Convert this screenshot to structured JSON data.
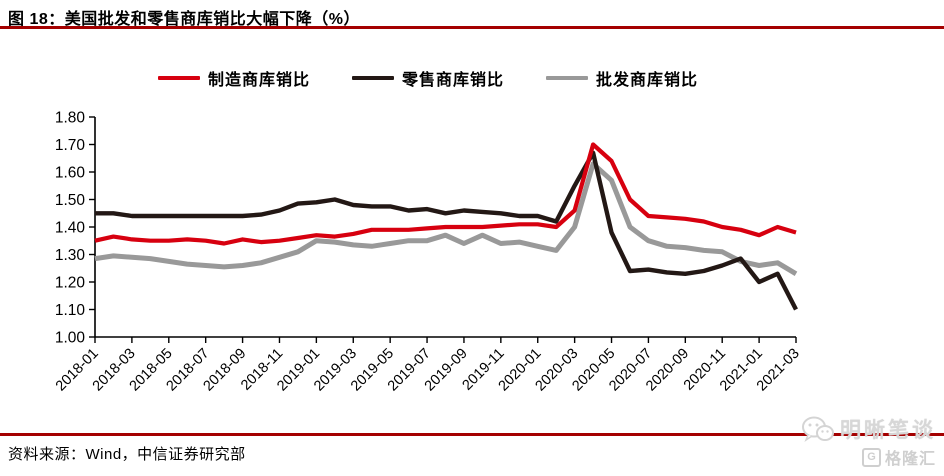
{
  "page": {
    "title": "图 18：美国批发和零售商库销比大幅下降（%）",
    "source": "资料来源：Wind，中信证券研究部",
    "watermark": {
      "brand": "明晰笔谈",
      "logo": "格隆汇",
      "logo_letter": "G"
    },
    "colors": {
      "accent_rule_red": "#A40000",
      "series_manufacturer_red": "#D7000F",
      "series_retailer_black": "#231815",
      "series_wholesaler_gray": "#999999",
      "watermark_gray": "#D7D7D7"
    }
  },
  "chart_data": {
    "type": "line",
    "title": "美国批发和零售商库销比大幅下降（%）",
    "xlabel": "",
    "ylabel": "",
    "ylim": [
      1.0,
      1.8
    ],
    "y_ticks": [
      1.0,
      1.1,
      1.2,
      1.3,
      1.4,
      1.5,
      1.6,
      1.7,
      1.8
    ],
    "grid": false,
    "legend_position": "top",
    "x": [
      "2018-01",
      "2018-02",
      "2018-03",
      "2018-04",
      "2018-05",
      "2018-06",
      "2018-07",
      "2018-08",
      "2018-09",
      "2018-10",
      "2018-11",
      "2018-12",
      "2019-01",
      "2019-02",
      "2019-03",
      "2019-04",
      "2019-05",
      "2019-06",
      "2019-07",
      "2019-08",
      "2019-09",
      "2019-10",
      "2019-11",
      "2019-12",
      "2020-01",
      "2020-02",
      "2020-03",
      "2020-04",
      "2020-05",
      "2020-06",
      "2020-07",
      "2020-08",
      "2020-09",
      "2020-10",
      "2020-11",
      "2020-12",
      "2021-01",
      "2021-02",
      "2021-03"
    ],
    "x_tick_labels": [
      "2018-01",
      "2018-03",
      "2018-05",
      "2018-07",
      "2018-09",
      "2018-11",
      "2019-01",
      "2019-03",
      "2019-05",
      "2019-07",
      "2019-09",
      "2019-11",
      "2020-01",
      "2020-03",
      "2020-05",
      "2020-07",
      "2020-09",
      "2020-11",
      "2021-01",
      "2021-03"
    ],
    "series": [
      {
        "name": "制造商库销比",
        "color": "#D7000F",
        "values": [
          1.35,
          1.365,
          1.355,
          1.35,
          1.35,
          1.355,
          1.35,
          1.34,
          1.355,
          1.345,
          1.35,
          1.36,
          1.37,
          1.365,
          1.375,
          1.39,
          1.39,
          1.39,
          1.395,
          1.4,
          1.4,
          1.4,
          1.405,
          1.41,
          1.41,
          1.4,
          1.46,
          1.7,
          1.64,
          1.5,
          1.44,
          1.435,
          1.43,
          1.42,
          1.4,
          1.39,
          1.37,
          1.4,
          1.38
        ]
      },
      {
        "name": "零售商库销比",
        "color": "#231815",
        "values": [
          1.45,
          1.45,
          1.44,
          1.44,
          1.44,
          1.44,
          1.44,
          1.44,
          1.44,
          1.445,
          1.46,
          1.485,
          1.49,
          1.5,
          1.48,
          1.475,
          1.475,
          1.46,
          1.465,
          1.45,
          1.46,
          1.455,
          1.45,
          1.44,
          1.44,
          1.42,
          1.55,
          1.67,
          1.38,
          1.24,
          1.245,
          1.235,
          1.23,
          1.24,
          1.26,
          1.285,
          1.2,
          1.23,
          1.1
        ]
      },
      {
        "name": "批发商库销比",
        "color": "#999999",
        "values": [
          1.285,
          1.295,
          1.29,
          1.285,
          1.275,
          1.265,
          1.26,
          1.255,
          1.26,
          1.27,
          1.29,
          1.31,
          1.35,
          1.345,
          1.335,
          1.33,
          1.34,
          1.35,
          1.35,
          1.37,
          1.34,
          1.37,
          1.34,
          1.345,
          1.33,
          1.315,
          1.4,
          1.63,
          1.57,
          1.4,
          1.35,
          1.33,
          1.325,
          1.315,
          1.31,
          1.275,
          1.26,
          1.27,
          1.23
        ]
      }
    ]
  }
}
